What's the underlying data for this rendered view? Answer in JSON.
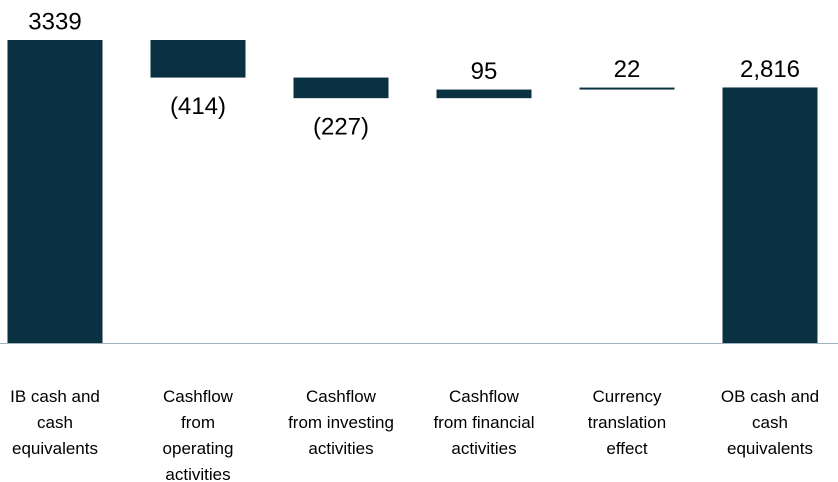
{
  "chart_data": {
    "type": "waterfall",
    "categories": [
      "IB cash and cash equivalents",
      "Cashflow from operating activities",
      "Cashflow from investing activities",
      "Cashflow from financial activities",
      "Currency translation effect",
      "OB cash and cash equivalents"
    ],
    "values": [
      3339,
      -414,
      -227,
      95,
      22,
      2816
    ],
    "value_labels": [
      "3339",
      "(414)",
      "(227)",
      "95",
      "22",
      "2,816"
    ],
    "color": "#0a3142",
    "ylim": [
      0,
      3500
    ]
  }
}
